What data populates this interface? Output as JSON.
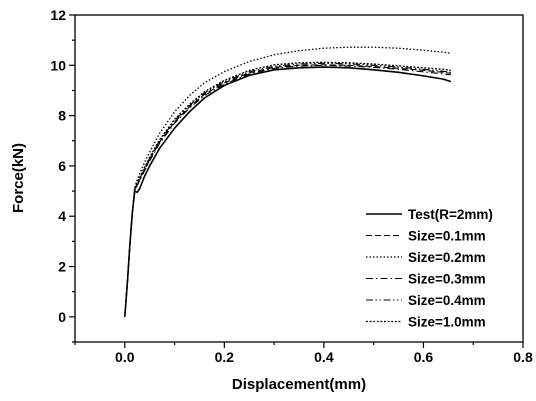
{
  "chart_data": {
    "type": "line",
    "xlabel": "Displacement(mm)",
    "ylabel": "Force(kN)",
    "xlim": [
      -0.1,
      0.8
    ],
    "ylim": [
      -1,
      12
    ],
    "xticks": [
      "0.0",
      "0.2",
      "0.4",
      "0.6",
      "0.8"
    ],
    "yticks": [
      "0",
      "2",
      "4",
      "6",
      "8",
      "10",
      "12"
    ],
    "legend_position": "bottom-right",
    "grid": false,
    "series": [
      {
        "name": "Test(R=2mm)",
        "dash": "solid",
        "x": [
          0.0,
          0.005,
          0.01,
          0.015,
          0.02,
          0.025,
          0.03,
          0.04,
          0.05,
          0.07,
          0.1,
          0.13,
          0.16,
          0.2,
          0.25,
          0.3,
          0.35,
          0.4,
          0.45,
          0.5,
          0.55,
          0.6,
          0.64,
          0.655
        ],
        "y": [
          0.0,
          1.3,
          2.8,
          4.1,
          5.0,
          4.95,
          5.1,
          5.6,
          6.0,
          6.7,
          7.5,
          8.15,
          8.7,
          9.2,
          9.6,
          9.82,
          9.9,
          9.93,
          9.9,
          9.82,
          9.72,
          9.58,
          9.45,
          9.35
        ]
      },
      {
        "name": "Size=0.1mm",
        "dash": "dashed",
        "x": [
          0.0,
          0.005,
          0.01,
          0.015,
          0.02,
          0.025,
          0.03,
          0.04,
          0.05,
          0.07,
          0.1,
          0.13,
          0.16,
          0.2,
          0.25,
          0.3,
          0.35,
          0.4,
          0.45,
          0.5,
          0.55,
          0.6,
          0.64,
          0.655
        ],
        "y": [
          0.0,
          1.3,
          2.8,
          4.1,
          5.05,
          5.25,
          5.45,
          5.85,
          6.25,
          6.95,
          7.75,
          8.35,
          8.85,
          9.3,
          9.7,
          9.92,
          10.0,
          10.02,
          10.0,
          9.95,
          9.88,
          9.8,
          9.72,
          9.68
        ]
      },
      {
        "name": "Size=0.2mm",
        "dash": "dotted",
        "x": [
          0.0,
          0.005,
          0.01,
          0.015,
          0.02,
          0.025,
          0.03,
          0.04,
          0.05,
          0.07,
          0.1,
          0.13,
          0.16,
          0.2,
          0.25,
          0.3,
          0.35,
          0.4,
          0.45,
          0.5,
          0.55,
          0.6,
          0.64,
          0.655
        ],
        "y": [
          0.0,
          1.3,
          2.8,
          4.1,
          5.15,
          5.45,
          5.7,
          6.15,
          6.55,
          7.3,
          8.15,
          8.8,
          9.3,
          9.75,
          10.15,
          10.42,
          10.58,
          10.68,
          10.72,
          10.72,
          10.68,
          10.6,
          10.52,
          10.48
        ]
      },
      {
        "name": "Size=0.3mm",
        "dash": "dashdot",
        "x": [
          0.0,
          0.005,
          0.01,
          0.015,
          0.02,
          0.025,
          0.03,
          0.04,
          0.05,
          0.07,
          0.1,
          0.13,
          0.16,
          0.2,
          0.25,
          0.3,
          0.35,
          0.4,
          0.45,
          0.5,
          0.55,
          0.6,
          0.64,
          0.655
        ],
        "y": [
          0.0,
          1.3,
          2.8,
          4.1,
          5.05,
          5.22,
          5.42,
          5.82,
          6.2,
          6.9,
          7.7,
          8.3,
          8.8,
          9.25,
          9.66,
          9.88,
          9.97,
          10.0,
          9.97,
          9.92,
          9.84,
          9.74,
          9.66,
          9.62
        ]
      },
      {
        "name": "Size=0.4mm",
        "dash": "dashdotdot",
        "x": [
          0.0,
          0.005,
          0.01,
          0.015,
          0.02,
          0.025,
          0.03,
          0.04,
          0.05,
          0.07,
          0.1,
          0.13,
          0.16,
          0.2,
          0.25,
          0.3,
          0.35,
          0.4,
          0.45,
          0.5,
          0.55,
          0.6,
          0.64,
          0.655
        ],
        "y": [
          0.0,
          1.3,
          2.8,
          4.1,
          5.08,
          5.3,
          5.5,
          5.9,
          6.3,
          7.0,
          7.8,
          8.4,
          8.9,
          9.35,
          9.75,
          9.96,
          10.05,
          10.08,
          10.06,
          10.0,
          9.93,
          9.84,
          9.76,
          9.72
        ]
      },
      {
        "name": "Size=1.0mm",
        "dash": "shortdot",
        "x": [
          0.0,
          0.005,
          0.01,
          0.015,
          0.02,
          0.025,
          0.03,
          0.04,
          0.05,
          0.07,
          0.1,
          0.13,
          0.16,
          0.2,
          0.25,
          0.3,
          0.35,
          0.4,
          0.45,
          0.5,
          0.55,
          0.6,
          0.64,
          0.655
        ],
        "y": [
          0.0,
          1.3,
          2.8,
          4.1,
          5.1,
          5.35,
          5.55,
          5.95,
          6.35,
          7.05,
          7.85,
          8.45,
          8.95,
          9.4,
          9.8,
          10.02,
          10.1,
          10.12,
          10.1,
          10.05,
          9.98,
          9.9,
          9.84,
          9.8
        ]
      }
    ]
  }
}
